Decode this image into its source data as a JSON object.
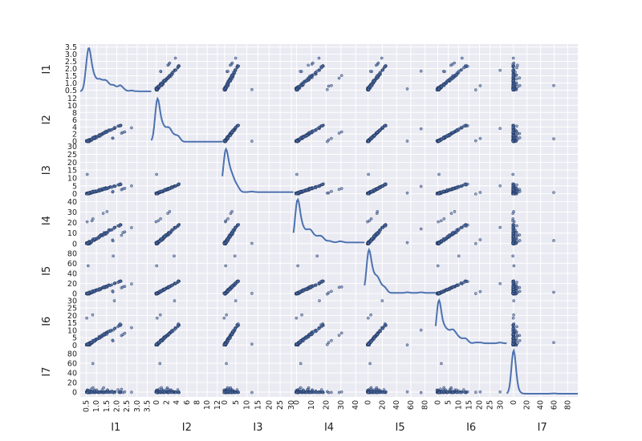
{
  "chart_data": {
    "type": "scatter",
    "subtype": "scatter-matrix",
    "variables": [
      "I1",
      "I2",
      "I3",
      "I4",
      "I5",
      "I6",
      "I7"
    ],
    "diagonal": "kde",
    "background": "#eaeaf2",
    "grid": true,
    "grid_color": "#ffffff",
    "point_color": "#4c72b0",
    "line_color": "#4c72b0",
    "axes": {
      "I1": {
        "range": [
          0.2,
          3.7
        ],
        "ticks_y": [
          "3.5",
          "3.0",
          "2.5",
          "2.0",
          "1.5",
          "1.0",
          "0.5",
          "0.0"
        ],
        "ticks_x": [
          "0.5",
          "1.0",
          "1.5",
          "2.0",
          "2.5",
          "3.0",
          "3.5"
        ],
        "tick_values": [
          0.5,
          1.0,
          1.5,
          2.0,
          2.5,
          3.0,
          3.5
        ]
      },
      "I2": {
        "range": [
          -1,
          13
        ],
        "ticks_y": [
          "12",
          "10",
          "8",
          "6",
          "4",
          "2",
          "0"
        ],
        "ticks_x": [
          "0",
          "2",
          "4",
          "6",
          "8",
          "10",
          "12"
        ],
        "tick_values": [
          0,
          2,
          4,
          6,
          8,
          10,
          12
        ]
      },
      "I3": {
        "range": [
          -1,
          31
        ],
        "ticks_y": [
          "30",
          "25",
          "20",
          "15",
          "10",
          "5",
          "0"
        ],
        "ticks_x": [
          "0",
          "5",
          "10",
          "15",
          "20",
          "25",
          "30"
        ],
        "tick_values": [
          0,
          5,
          10,
          15,
          20,
          25,
          30
        ]
      },
      "I4": {
        "range": [
          -2,
          46
        ],
        "ticks_y": [
          "40",
          "30",
          "20",
          "10",
          "0"
        ],
        "ticks_x": [
          "0",
          "10",
          "20",
          "30",
          "40"
        ],
        "tick_values": [
          0,
          10,
          20,
          30,
          40
        ]
      },
      "I5": {
        "range": [
          -5,
          95
        ],
        "ticks_y": [
          "80",
          "60",
          "40",
          "20",
          "0"
        ],
        "ticks_x": [
          "0",
          "20",
          "40",
          "60",
          "80"
        ],
        "tick_values": [
          0,
          20,
          40,
          60,
          80
        ]
      },
      "I6": {
        "range": [
          -1,
          33
        ],
        "ticks_y": [
          "30",
          "25",
          "20",
          "15",
          "10",
          "5",
          "0"
        ],
        "ticks_x": [
          "0",
          "5",
          "10",
          "15",
          "20",
          "25",
          "30"
        ],
        "tick_values": [
          0,
          5,
          10,
          15,
          20,
          25,
          30
        ]
      },
      "I7": {
        "range": [
          -10,
          95
        ],
        "ticks_y": [
          "80",
          "60",
          "40",
          "20",
          "0"
        ],
        "ticks_x": [
          "0",
          "20",
          "40",
          "60",
          "80"
        ],
        "tick_values": [
          0,
          20,
          40,
          60,
          80
        ]
      }
    }
  }
}
